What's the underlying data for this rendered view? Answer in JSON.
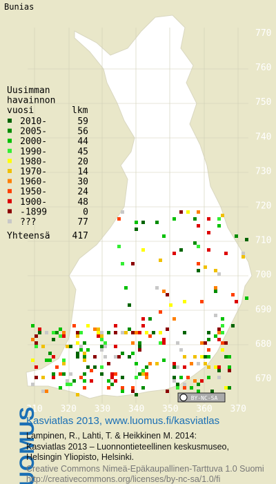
{
  "title": "Bunias",
  "right_axis": [
    770,
    760,
    750,
    740,
    730,
    720,
    710,
    700,
    690,
    680,
    670
  ],
  "bottom_axis": [
    310,
    320,
    330,
    340,
    350,
    360,
    370
  ],
  "legend": {
    "heading": [
      "Uusimman",
      "havainnon",
      "vuosi"
    ],
    "count_heading": "lkm",
    "items": [
      {
        "label": "2010-",
        "count": 59,
        "color": "#006400"
      },
      {
        "label": "2005-",
        "count": 56,
        "color": "#008c00"
      },
      {
        "label": "2000-",
        "count": 44,
        "color": "#00c000"
      },
      {
        "label": "1990-",
        "count": 45,
        "color": "#33ee33"
      },
      {
        "label": "1980-",
        "count": 20,
        "color": "#ffff00"
      },
      {
        "label": "1970-",
        "count": 14,
        "color": "#f0c000"
      },
      {
        "label": "1960-",
        "count": 30,
        "color": "#ff7f00"
      },
      {
        "label": "1950-",
        "count": 24,
        "color": "#ff4000"
      },
      {
        "label": "1900-",
        "count": 48,
        "color": "#dd0000"
      },
      {
        "label": "-1899",
        "count": 0,
        "color": "#8b0000"
      },
      {
        "label": "???",
        "count": 77,
        "color": "#c8c8c8"
      }
    ],
    "total_label": "Yhteensä",
    "total": 417
  },
  "badge": "BY-NC-SA",
  "footer": {
    "logo": "LUOMUS",
    "heading": "Kasviatlas 2013, www.luomus.fi/kasviatlas",
    "citation": [
      "Lampinen, R., Lahti, T. & Heikkinen M. 2014:",
      "Kasviatlas 2013 – Luonnontieteellinen keskusmuseo,",
      "Helsingin Yliopisto, Helsinki."
    ],
    "license": [
      "Creative Commons Nimeä-Epäkaupallinen-Tarttuva 1.0 Suomi",
      "http://creativecommons.org/licenses/by-nc-sa/1.0/fi"
    ]
  }
}
